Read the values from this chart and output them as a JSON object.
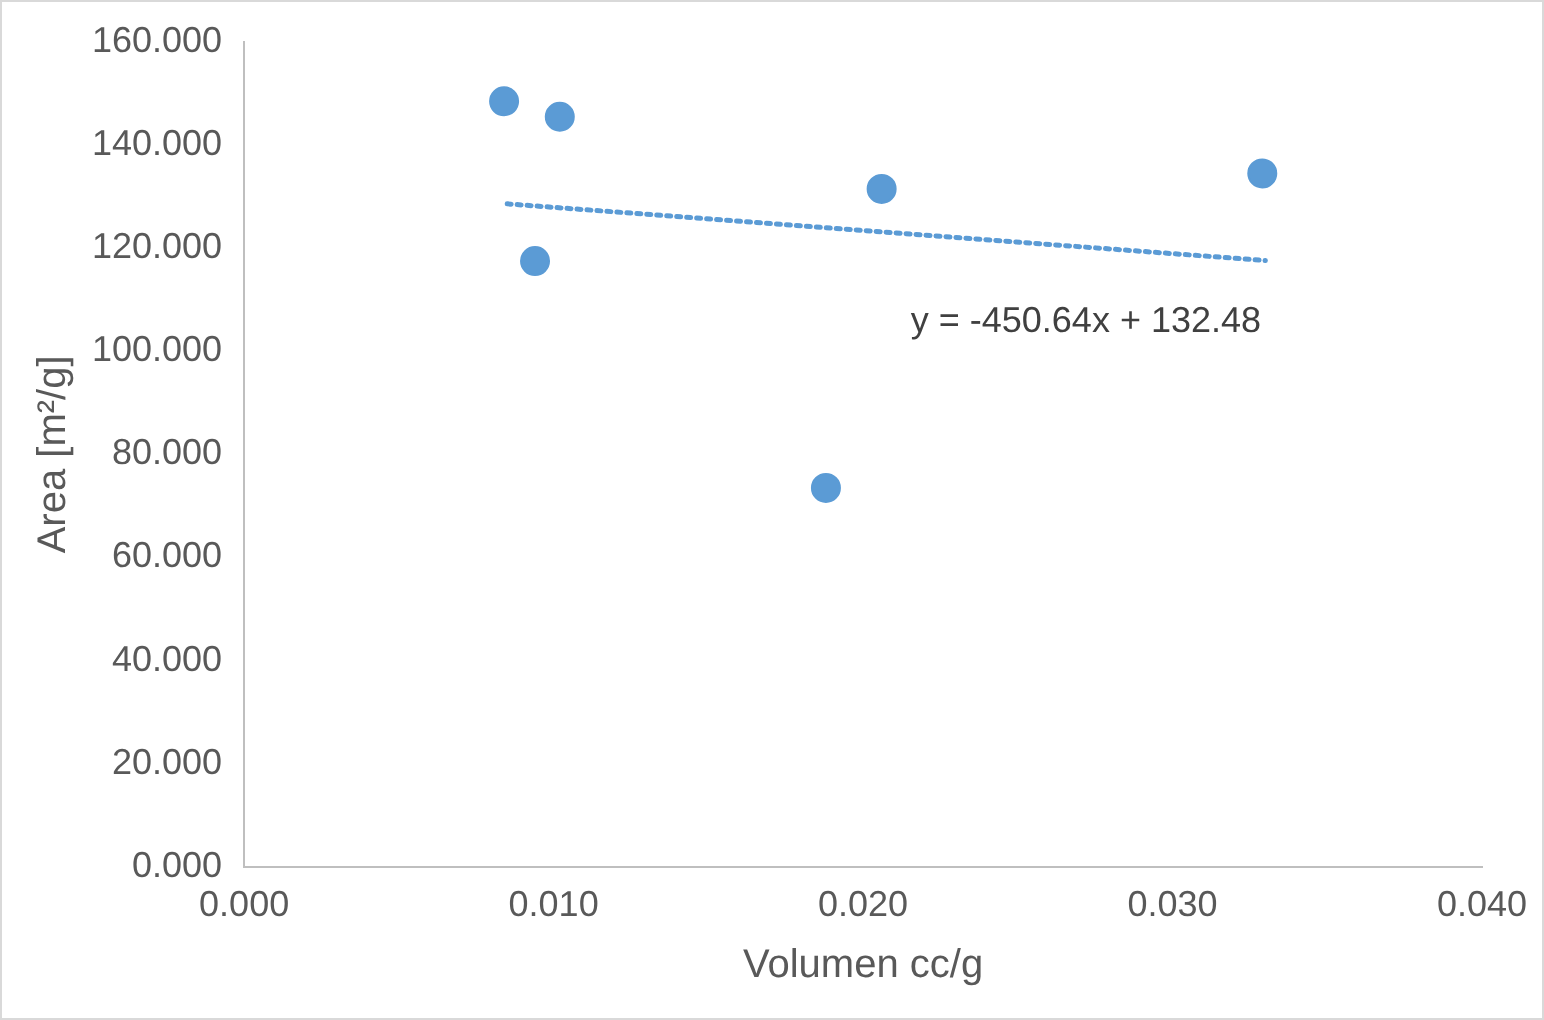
{
  "chart_data": {
    "type": "scatter",
    "xlabel": "Volumen cc/g",
    "ylabel": "Area [m²/g]",
    "xlim": [
      0,
      0.04
    ],
    "ylim": [
      0,
      160
    ],
    "xticks": [
      {
        "value": 0,
        "label": "0.000"
      },
      {
        "value": 0.01,
        "label": "0.010"
      },
      {
        "value": 0.02,
        "label": "0.020"
      },
      {
        "value": 0.03,
        "label": "0.030"
      },
      {
        "value": 0.04,
        "label": "0.040"
      }
    ],
    "yticks": [
      {
        "value": 0,
        "label": "0.000"
      },
      {
        "value": 20,
        "label": "20.000"
      },
      {
        "value": 40,
        "label": "40.000"
      },
      {
        "value": 60,
        "label": "60.000"
      },
      {
        "value": 80,
        "label": "80.000"
      },
      {
        "value": 100,
        "label": "100.000"
      },
      {
        "value": 120,
        "label": "120.000"
      },
      {
        "value": 140,
        "label": "140.000"
      },
      {
        "value": 160,
        "label": "160.000"
      }
    ],
    "grid": false,
    "legend": false,
    "series": [
      {
        "marker": "circle",
        "color": "#5b9bd5",
        "x": [
          0.0084,
          0.0102,
          0.0094,
          0.0206,
          0.0188,
          0.0329
        ],
        "values": [
          148.5,
          145.5,
          117.5,
          131.5,
          73.5,
          134.5
        ]
      },
      {
        "type": "line",
        "marker": "none",
        "color": "#5b9bd5",
        "line_style": "dotted",
        "x": [
          0.0085,
          0.033
        ],
        "values": [
          128.6,
          117.6
        ]
      }
    ],
    "annotations": [
      "y = -450.64x + 132.48"
    ]
  }
}
